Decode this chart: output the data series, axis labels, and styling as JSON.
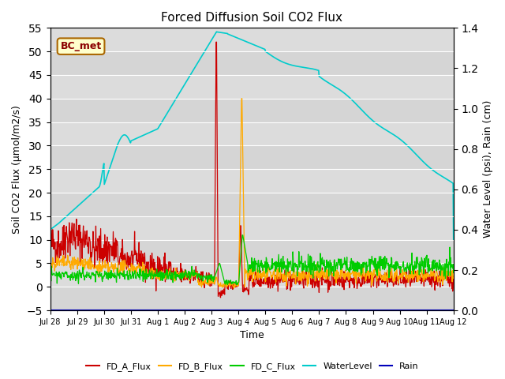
{
  "title": "Forced Diffusion Soil CO2 Flux",
  "ylabel_left": "Soil CO2 Flux (μmol/m2/s)",
  "ylabel_right": "Water Level (psi), Rain (cm)",
  "xlabel": "Time",
  "ylim_left": [
    -5,
    55
  ],
  "ylim_right": [
    0.0,
    1.4
  ],
  "background_color": "#dcdcdc",
  "box_label": "BC_met",
  "xtick_labels": [
    "Jul 28",
    "Jul 29",
    "Jul 30",
    "Jul 31",
    "Aug 1",
    "Aug 2",
    "Aug 3",
    "Aug 4",
    "Aug 5",
    "Aug 6",
    "Aug 7",
    "Aug 8",
    "Aug 9",
    "Aug 10",
    "Aug 11",
    "Aug 12"
  ],
  "yticks_left": [
    -5,
    0,
    5,
    10,
    15,
    20,
    25,
    30,
    35,
    40,
    45,
    50,
    55
  ],
  "yticks_right": [
    0.0,
    0.2,
    0.4,
    0.6,
    0.8,
    1.0,
    1.2,
    1.4
  ],
  "colors": {
    "FD_A_Flux": "#cc0000",
    "FD_B_Flux": "#ffaa00",
    "FD_C_Flux": "#00cc00",
    "WaterLevel": "#00cccc",
    "Rain": "#0000bb"
  }
}
